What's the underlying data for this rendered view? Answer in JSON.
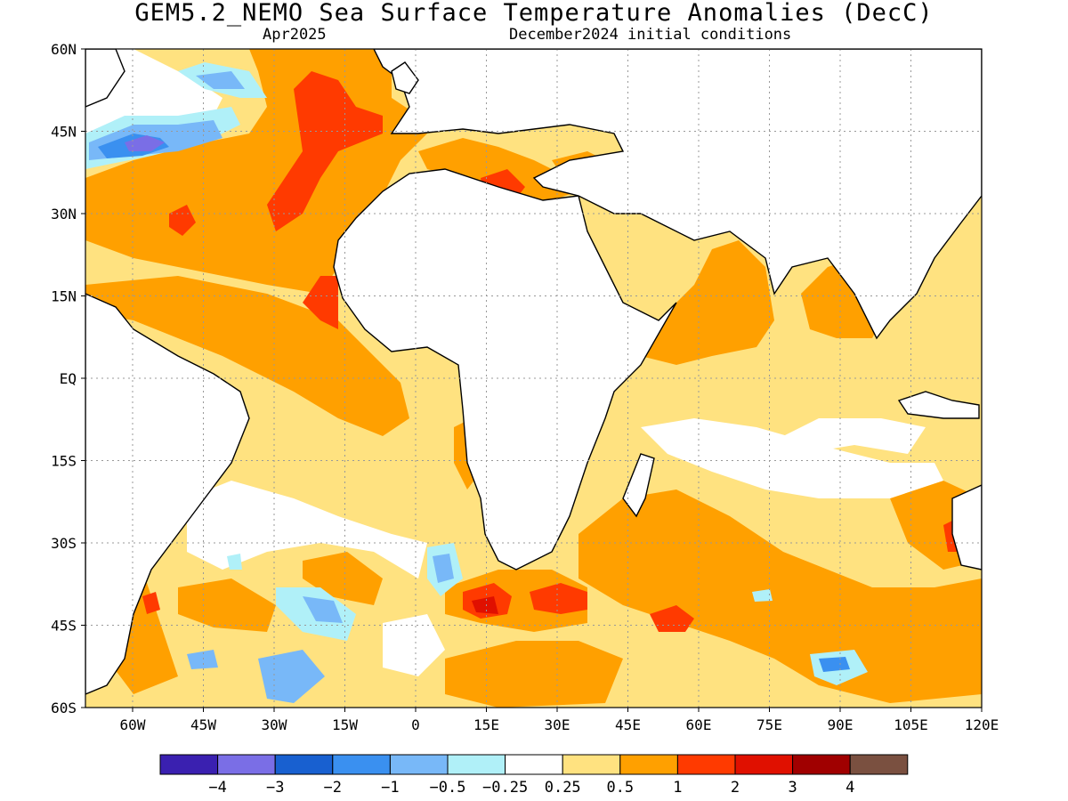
{
  "title": "GEM5.2_NEMO Sea Surface Temperature Anomalies (DecC)",
  "valid_month": "Apr2025",
  "init_conditions": "December2024 initial conditions",
  "map": {
    "lon_range": [
      -70,
      120
    ],
    "lat_range": [
      -60,
      60
    ],
    "lat_ticks": [
      {
        "value": 60,
        "label": "60N"
      },
      {
        "value": 45,
        "label": "45N"
      },
      {
        "value": 30,
        "label": "30N"
      },
      {
        "value": 15,
        "label": "15N"
      },
      {
        "value": 0,
        "label": "EQ"
      },
      {
        "value": -15,
        "label": "15S"
      },
      {
        "value": -30,
        "label": "30S"
      },
      {
        "value": -45,
        "label": "45S"
      },
      {
        "value": -60,
        "label": "60S"
      }
    ],
    "lon_ticks": [
      {
        "value": -60,
        "label": "60W"
      },
      {
        "value": -45,
        "label": "45W"
      },
      {
        "value": -30,
        "label": "30W"
      },
      {
        "value": -15,
        "label": "15W"
      },
      {
        "value": 0,
        "label": "0"
      },
      {
        "value": 15,
        "label": "15E"
      },
      {
        "value": 30,
        "label": "30E"
      },
      {
        "value": 45,
        "label": "45E"
      },
      {
        "value": 60,
        "label": "60E"
      },
      {
        "value": 75,
        "label": "75E"
      },
      {
        "value": 90,
        "label": "90E"
      },
      {
        "value": 105,
        "label": "105E"
      },
      {
        "value": 120,
        "label": "120E"
      }
    ],
    "grid": true
  },
  "colorbar": {
    "colors": [
      "#3a20b0",
      "#7a6ee6",
      "#1860d0",
      "#3a90f0",
      "#78b8f8",
      "#b0f0f8",
      "#ffffff",
      "#ffe280",
      "#ffa000",
      "#ff3a00",
      "#e01000",
      "#a00000",
      "#7a5040"
    ],
    "labels": [
      "−4",
      "−3",
      "−2",
      "−1",
      "−0.5",
      "−0.25",
      "0.25",
      "0.5",
      "1",
      "2",
      "3",
      "4"
    ]
  }
}
